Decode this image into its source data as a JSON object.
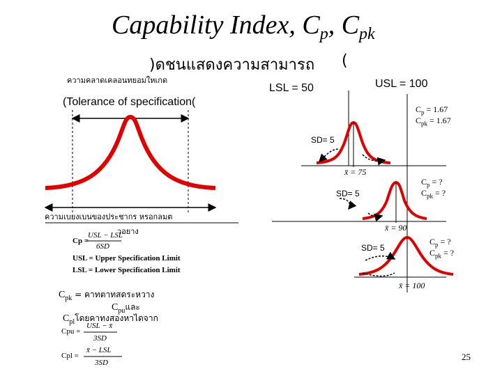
{
  "title": {
    "main": "Capability Index, C",
    "sub1": "p",
    "sep": ", C",
    "sub2": "pk"
  },
  "subtitle": {
    "text": ")ดชนแสดงความสามารถ",
    "paren": "("
  },
  "tolerance": {
    "thai": "ความคลาดเคลอนทยอมใหเกด",
    "en": "(Tolerance of specification("
  },
  "limits": {
    "lsl": "LSL = 50",
    "usl": "USL = 100"
  },
  "curves": [
    {
      "sd": "SD= 5",
      "xbar": "x̄ = 75",
      "cp_label": "C",
      "cp_sub": "p",
      "cp_val": " = 1.67",
      "cpk_label": "C",
      "cpk_sub": "pk",
      "cpk_val": " = 1.67"
    },
    {
      "sd": "SD= 5",
      "xbar": "x̄ = 90",
      "cp_label": "C",
      "cp_sub": "p",
      "cp_val": " = ?",
      "cpk_label": "C",
      "cpk_sub": "pk",
      "cpk_val": " = ?"
    },
    {
      "sd": "SD= 5",
      "xbar": "x̄ = 100",
      "cp_label": "C",
      "cp_sub": "p",
      "cp_val": " = ?",
      "cpk_label": "C",
      "cpk_sub": "pk",
      "cpk_val": " = ?"
    }
  ],
  "spread": {
    "line1": "ความเบยงเบนของประชากร หรอกลมต",
    "line2": "วอยาง"
  },
  "formulas": {
    "cp_lhs": "Cp =",
    "cp_num": "USL − LSL",
    "cp_den": "6SD",
    "usl_def": "USL = Upper Specification Limit",
    "lsl_def": "LSL = Lower Specification Limit",
    "cpu_lhs": "Cpu =",
    "cpu_num": "USL − x̄",
    "cpu_den": "3SD",
    "cpl_lhs": "Cpl =",
    "cpl_num": "x̄ − LSL",
    "cpl_den": "3SD"
  },
  "cpk_def": {
    "line1_c": "C",
    "line1_sub": "pk",
    "line1_rest": " = คาทตาทสดระหวาง",
    "line2_c": "C",
    "line2_sub": "pu",
    "line2_rest": "และ",
    "line3_c": "C",
    "line3_sub": "pl",
    "line3_rest": "โดยคาทงสองหาไดจาก"
  },
  "page_number": "25",
  "colors": {
    "curve": "#e00000",
    "arrow": "#000000"
  }
}
